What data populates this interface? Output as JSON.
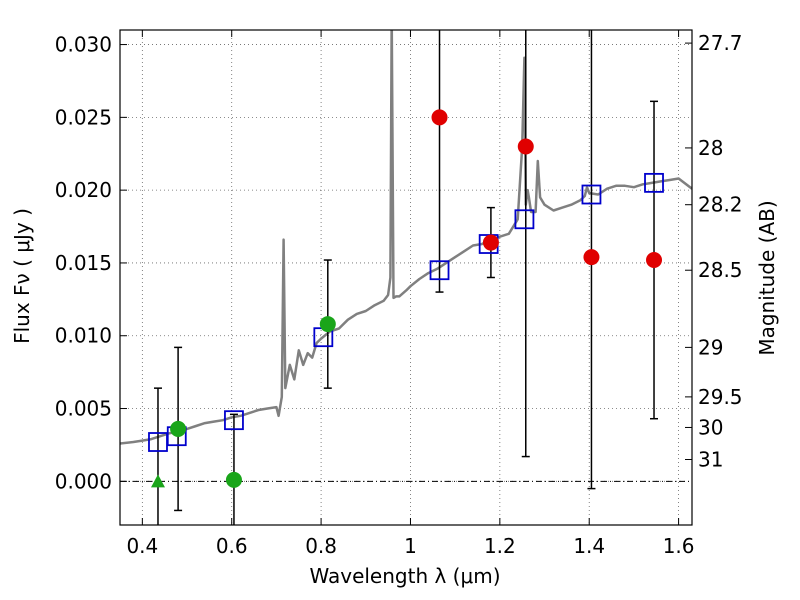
{
  "chart_data": {
    "type": "scatter",
    "xlabel": "Wavelength  λ (μm)",
    "ylabel": "Flux  Fν  ( μJy )",
    "y2label": "Magnitude (AB)",
    "xlim": [
      0.35,
      1.63
    ],
    "ylim": [
      -0.003,
      0.031
    ],
    "xticks": [
      0.4,
      0.6,
      0.8,
      1.0,
      1.2,
      1.4,
      1.6
    ],
    "xtick_labels": [
      "0.4",
      "0.6",
      "0.8",
      "1",
      "1.2",
      "1.4",
      "1.6"
    ],
    "yticks": [
      0.0,
      0.005,
      0.01,
      0.015,
      0.02,
      0.025,
      0.03
    ],
    "ytick_labels": [
      "0.000",
      "0.005",
      "0.010",
      "0.015",
      "0.020",
      "0.025",
      "0.030"
    ],
    "right_ticks": [
      {
        "label": "27.7",
        "flux": 0.0301
      },
      {
        "label": "28",
        "flux": 0.0229
      },
      {
        "label": "28.2",
        "flux": 0.019
      },
      {
        "label": "28.5",
        "flux": 0.0145
      },
      {
        "label": "29",
        "flux": 0.0092
      },
      {
        "label": "29.5",
        "flux": 0.0058
      },
      {
        "label": "30",
        "flux": 0.0037
      },
      {
        "label": "31",
        "flux": 0.0015
      }
    ],
    "grid": true,
    "colors": {
      "spectrum": "#808080",
      "model_box": "#0000cc",
      "green": "#1aa51a",
      "red": "#e00000",
      "errorbar": "#000000",
      "zero_line": "#000000"
    },
    "series": [
      {
        "name": "model spectrum",
        "type": "line",
        "x": [
          0.35,
          0.38,
          0.4,
          0.42,
          0.44,
          0.46,
          0.48,
          0.5,
          0.52,
          0.54,
          0.56,
          0.58,
          0.6,
          0.62,
          0.64,
          0.66,
          0.68,
          0.7,
          0.705,
          0.712,
          0.716,
          0.72,
          0.73,
          0.74,
          0.75,
          0.76,
          0.77,
          0.78,
          0.79,
          0.8,
          0.82,
          0.84,
          0.86,
          0.88,
          0.9,
          0.92,
          0.94,
          0.95,
          0.955,
          0.958,
          0.962,
          0.968,
          0.975,
          0.99,
          1.0,
          1.02,
          1.04,
          1.06,
          1.08,
          1.1,
          1.12,
          1.14,
          1.16,
          1.18,
          1.2,
          1.22,
          1.24,
          1.25,
          1.255,
          1.258,
          1.262,
          1.265,
          1.27,
          1.28,
          1.285,
          1.29,
          1.3,
          1.32,
          1.34,
          1.36,
          1.38,
          1.39,
          1.395,
          1.4,
          1.42,
          1.44,
          1.46,
          1.48,
          1.5,
          1.52,
          1.54,
          1.56,
          1.58,
          1.6,
          1.63
        ],
        "y": [
          0.0026,
          0.0027,
          0.0028,
          0.0029,
          0.0031,
          0.0033,
          0.0034,
          0.0036,
          0.0038,
          0.004,
          0.0041,
          0.0042,
          0.0044,
          0.0045,
          0.0047,
          0.0049,
          0.005,
          0.0051,
          0.0045,
          0.0058,
          0.0166,
          0.0064,
          0.008,
          0.007,
          0.009,
          0.008,
          0.0088,
          0.0085,
          0.0095,
          0.0098,
          0.0103,
          0.0105,
          0.0111,
          0.0115,
          0.0117,
          0.0121,
          0.0124,
          0.0128,
          0.014,
          0.032,
          0.0126,
          0.0127,
          0.0127,
          0.0131,
          0.0134,
          0.0139,
          0.0143,
          0.0146,
          0.015,
          0.0154,
          0.0158,
          0.0162,
          0.0163,
          0.0166,
          0.0168,
          0.017,
          0.018,
          0.023,
          0.0291,
          0.019,
          0.02,
          0.0195,
          0.0185,
          0.0185,
          0.022,
          0.0195,
          0.019,
          0.0186,
          0.0188,
          0.019,
          0.0193,
          0.0196,
          0.0202,
          0.0198,
          0.0197,
          0.0201,
          0.0203,
          0.0203,
          0.0202,
          0.0204,
          0.0205,
          0.0206,
          0.0207,
          0.0208,
          0.0201
        ]
      },
      {
        "name": "model photometry",
        "type": "scatter",
        "marker": "open-square",
        "x": [
          0.435,
          0.477,
          0.605,
          0.805,
          1.065,
          1.175,
          1.255,
          1.405,
          1.545
        ],
        "y": [
          0.0027,
          0.0031,
          0.0042,
          0.0099,
          0.0145,
          0.0163,
          0.018,
          0.0197,
          0.0205
        ]
      },
      {
        "name": "detections",
        "type": "scatter",
        "marker": "filled-circle",
        "color": "green",
        "x": [
          0.48,
          0.605,
          0.815
        ],
        "y": [
          0.0036,
          0.0001,
          0.0108
        ],
        "err": [
          0.0056,
          0.0045,
          0.0044
        ]
      },
      {
        "name": "upper limit",
        "type": "scatter",
        "marker": "triangle",
        "color": "green",
        "x": [
          0.435
        ],
        "y": [
          0.0
        ],
        "err": [
          0.0064
        ]
      },
      {
        "name": "photometry",
        "type": "scatter",
        "marker": "filled-circle",
        "color": "red",
        "x": [
          1.065,
          1.18,
          1.258,
          1.405,
          1.545
        ],
        "y": [
          0.025,
          0.0164,
          0.023,
          0.0154,
          0.0152
        ],
        "err": [
          0.012,
          0.0024,
          0.0213,
          0.0159,
          0.0109
        ]
      }
    ]
  }
}
